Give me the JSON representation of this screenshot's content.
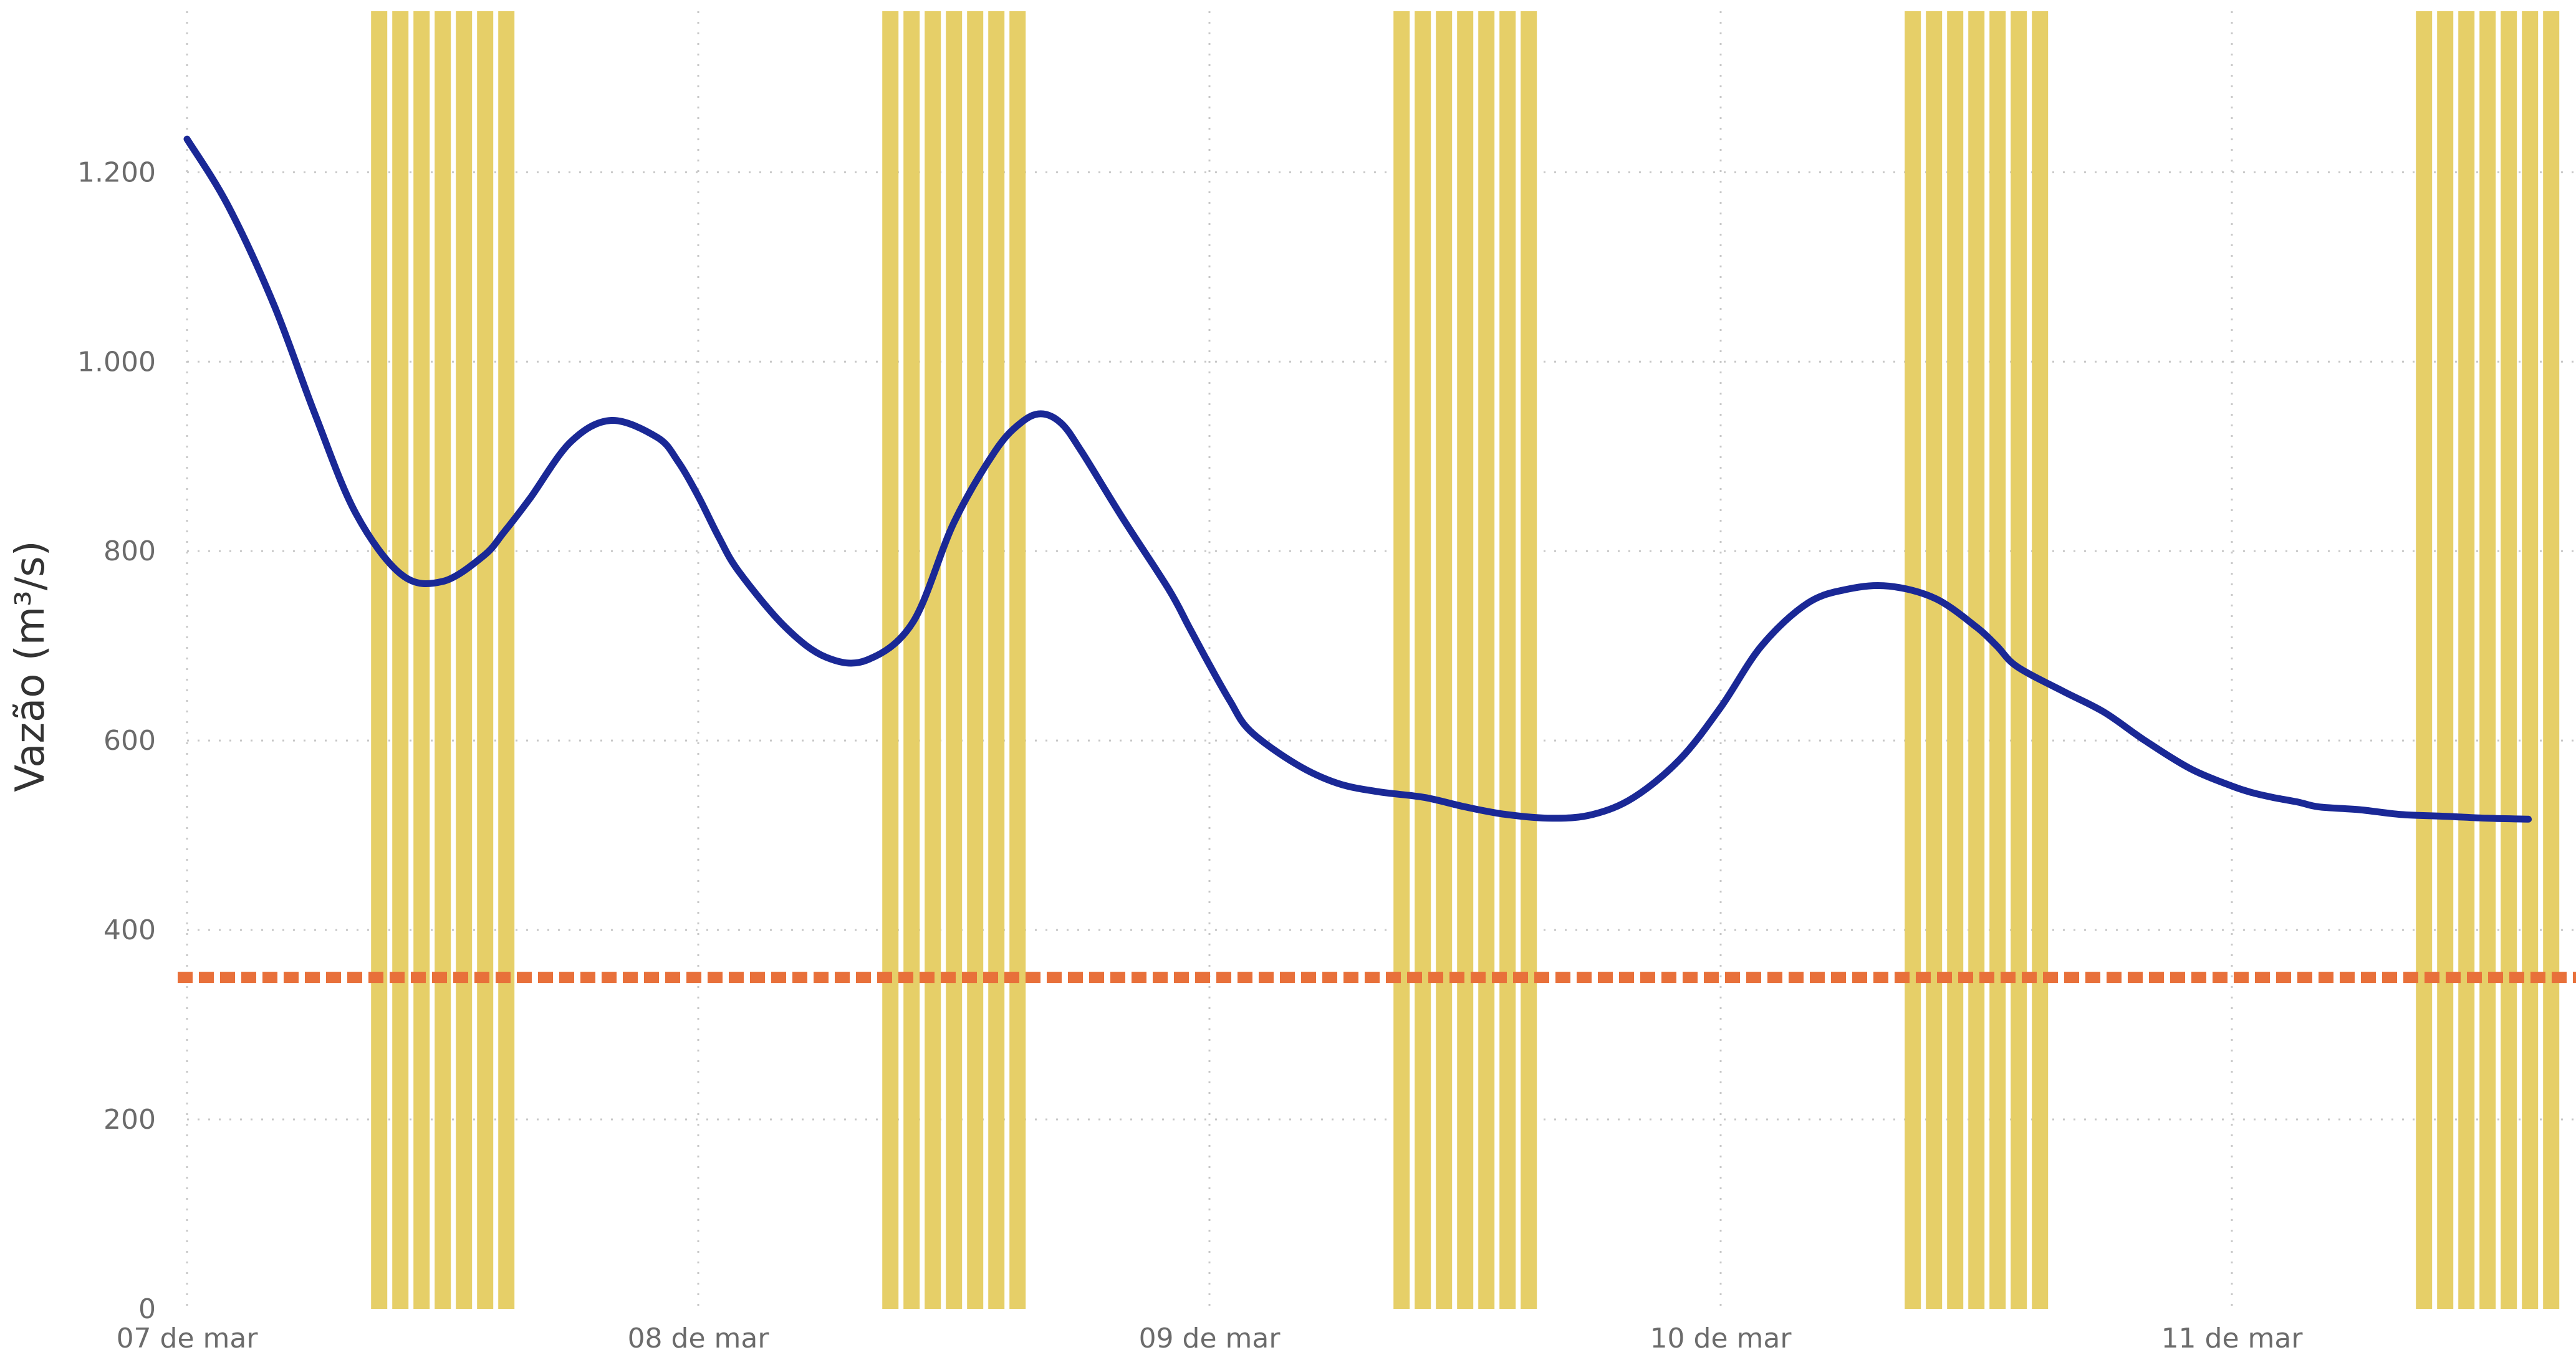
{
  "chart_data": {
    "type": "line",
    "title": "",
    "xlabel": "",
    "ylabel": "Vazão (m³/s)",
    "ylim": [
      0,
      1370
    ],
    "yticks": [
      0,
      200,
      400,
      600,
      800,
      1000,
      1200
    ],
    "ytick_labels": [
      "0",
      "200",
      "400",
      "600",
      "800",
      "1.000",
      "1.200"
    ],
    "xlim": [
      0,
      4.67
    ],
    "xticks": [
      0,
      1,
      2,
      3,
      4
    ],
    "xtick_labels": [
      "07 de mar",
      "08 de mar",
      "09 de mar",
      "10 de mar",
      "11 de mar"
    ],
    "grid": true,
    "legend": "none",
    "series": [
      {
        "kind": "line",
        "color": "#1a2896",
        "x": [
          0,
          0.08,
          0.17,
          0.25,
          0.33,
          0.42,
          0.5,
          0.58,
          0.62,
          0.67,
          0.75,
          0.83,
          0.92,
          0.96,
          1.0,
          1.04,
          1.08,
          1.17,
          1.25,
          1.33,
          1.42,
          1.5,
          1.58,
          1.63,
          1.67,
          1.71,
          1.75,
          1.83,
          1.92,
          1.96,
          2.0,
          2.04,
          2.08,
          2.17,
          2.25,
          2.33,
          2.42,
          2.5,
          2.58,
          2.67,
          2.75,
          2.83,
          2.92,
          3.0,
          3.08,
          3.17,
          3.25,
          3.33,
          3.42,
          3.5,
          3.54,
          3.58,
          3.67,
          3.75,
          3.83,
          3.92,
          4.0,
          4.04,
          4.08,
          4.13,
          4.17,
          4.25,
          4.33,
          4.42,
          4.5,
          4.58
        ],
        "y": [
          1235,
          1165,
          1060,
          945,
          840,
          775,
          768,
          795,
          820,
          855,
          915,
          938,
          920,
          895,
          858,
          815,
          778,
          720,
          688,
          685,
          725,
          830,
          905,
          935,
          945,
          935,
          905,
          835,
          760,
          720,
          680,
          642,
          610,
          575,
          555,
          546,
          540,
          530,
          522,
          518,
          522,
          540,
          580,
          635,
          700,
          745,
          760,
          763,
          750,
          720,
          700,
          678,
          652,
          630,
          600,
          570,
          552,
          545,
          540,
          535,
          530,
          527,
          522,
          520,
          518,
          517
        ],
        "note_unused": ""
      },
      {
        "kind": "reference-line",
        "color": "#e8703a",
        "style": "dashed",
        "y": 350
      }
    ],
    "shaded_bands": {
      "color": "#e6cf68",
      "style": "vertical-striped",
      "ranges": [
        [
          0.36,
          0.68
        ],
        [
          1.36,
          1.68
        ],
        [
          2.36,
          2.68
        ],
        [
          3.36,
          3.68
        ],
        [
          4.36,
          4.67
        ]
      ]
    }
  }
}
